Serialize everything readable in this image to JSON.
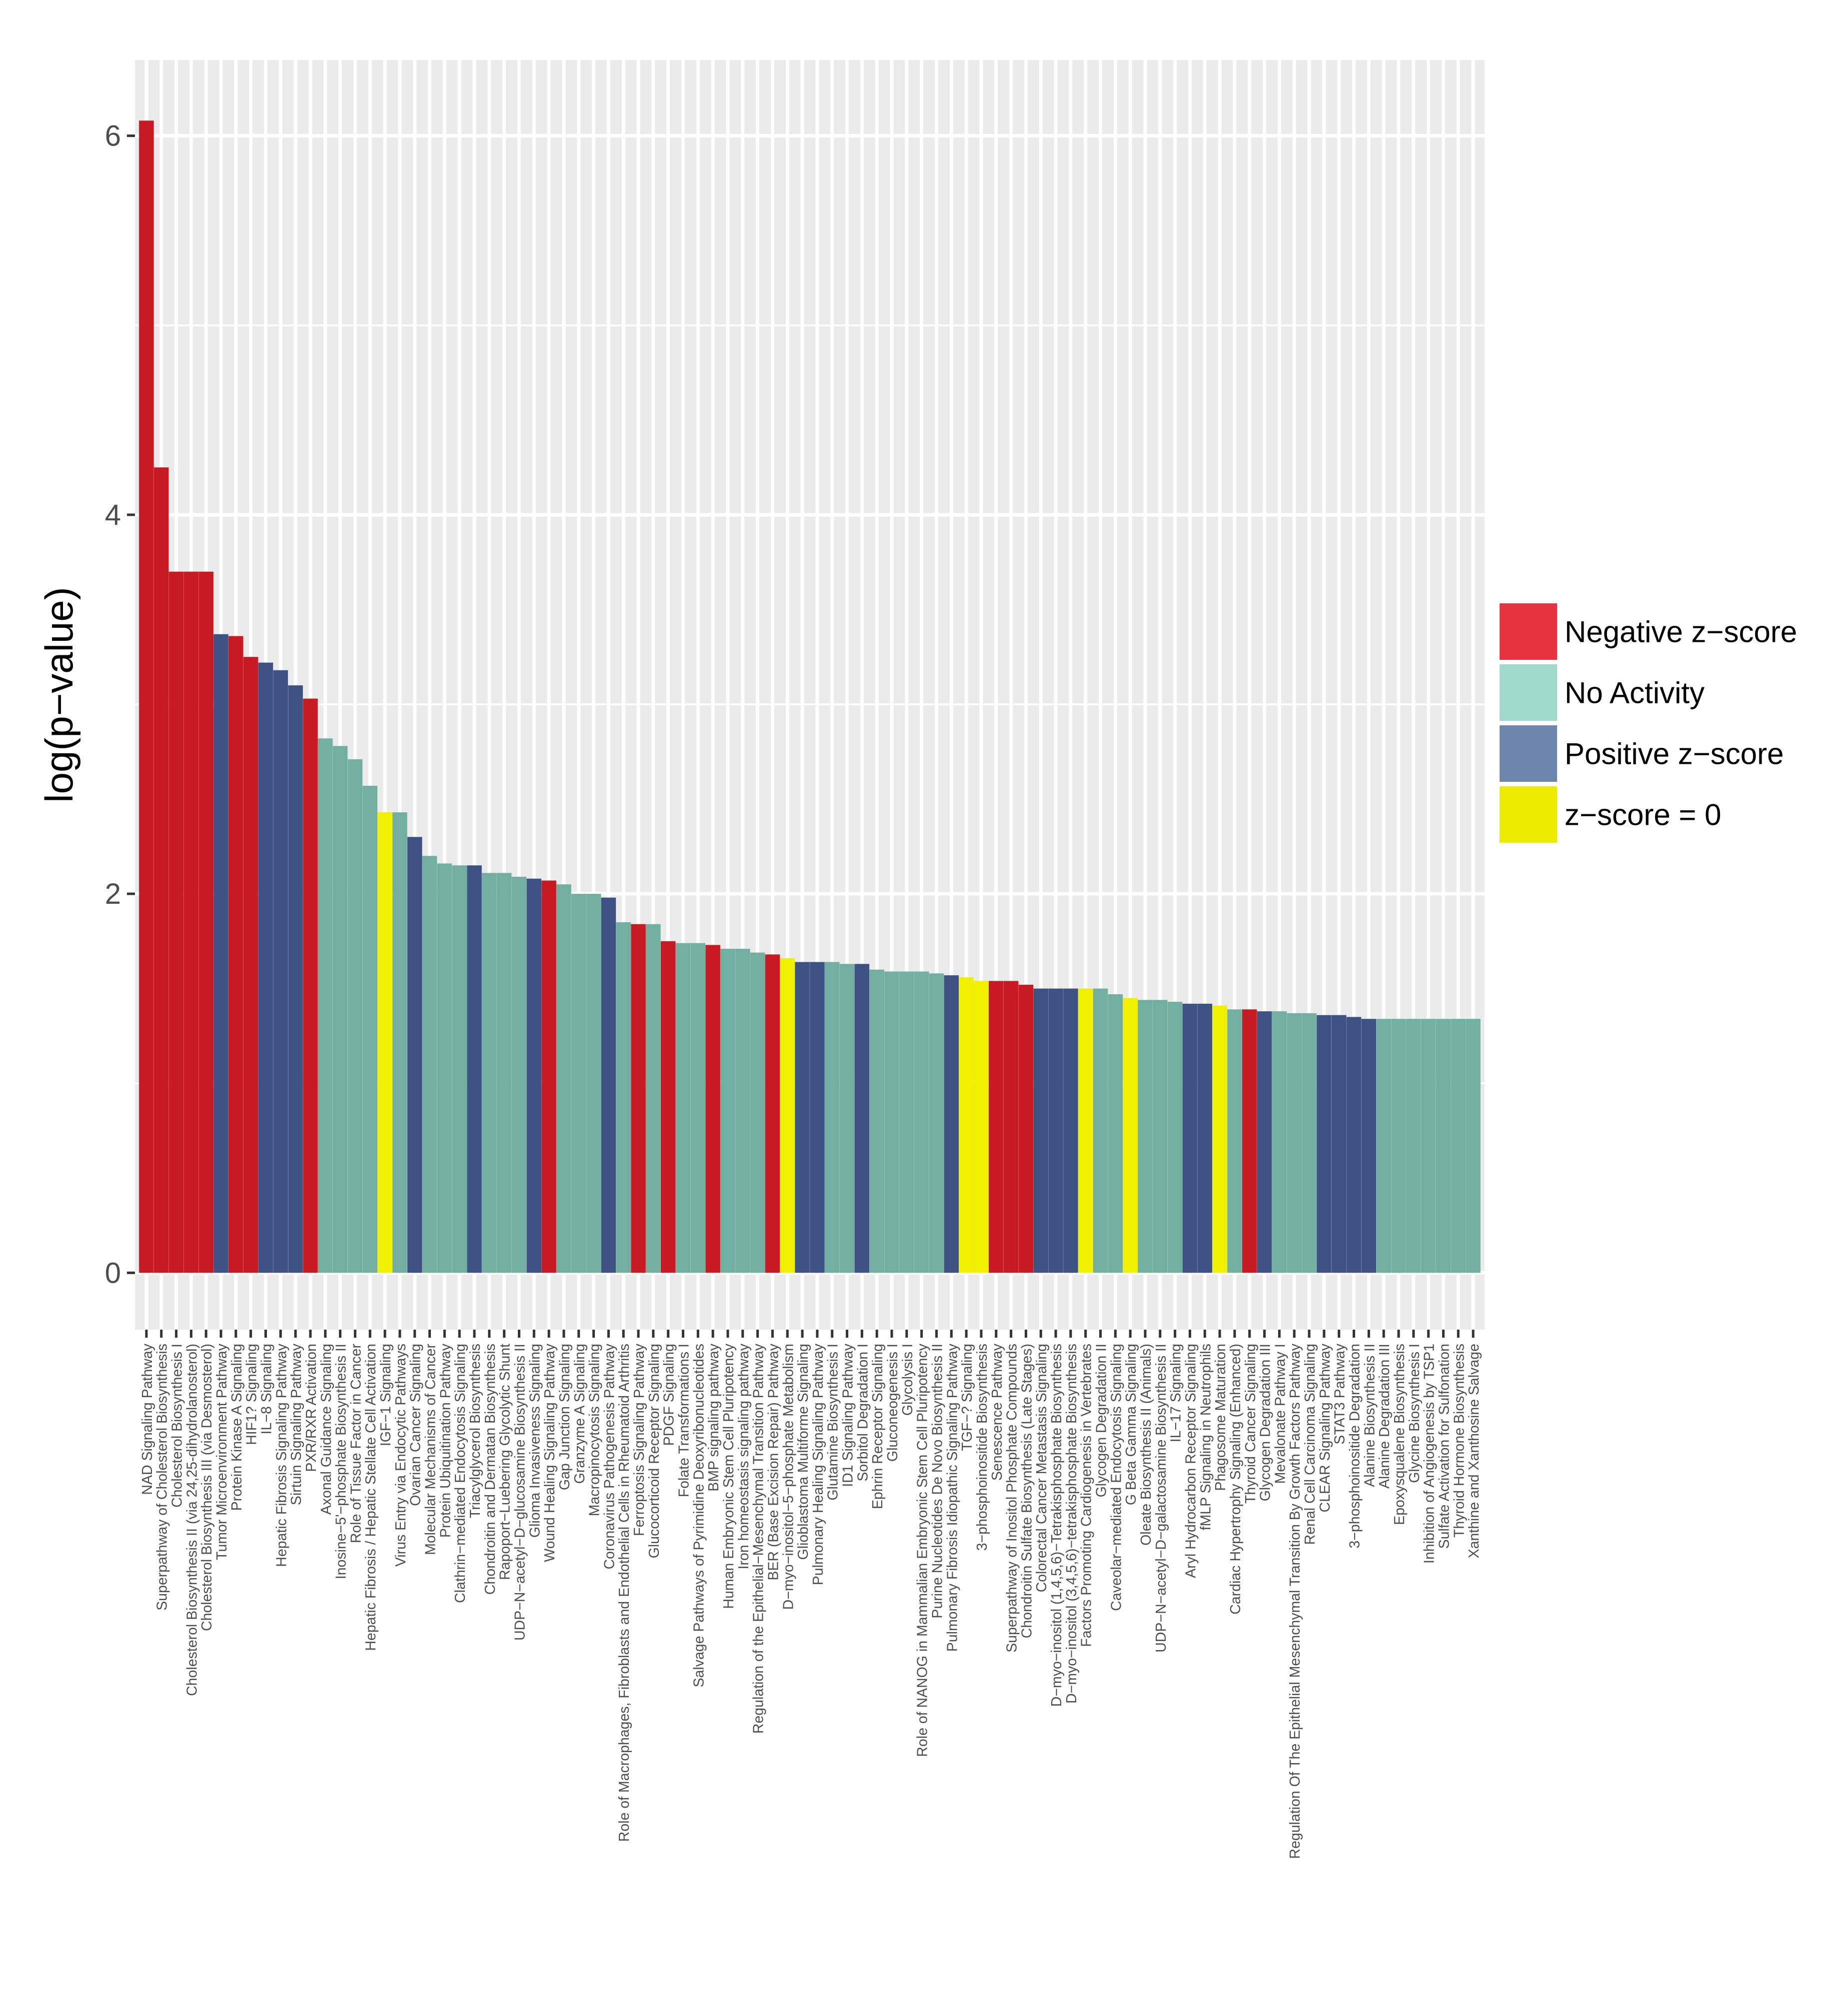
{
  "chart_data": {
    "type": "bar",
    "title": "",
    "xlabel": "",
    "ylabel": "log(p−value)",
    "ylim": [
      -0.3,
      6.4
    ],
    "yticks": [
      0,
      2,
      4,
      6
    ],
    "grid": true,
    "legend": {
      "placement": "right",
      "entries": [
        {
          "key": "neg",
          "label": "Negative z−score",
          "color": "#e8333f"
        },
        {
          "key": "na",
          "label": "No Activity",
          "color": "#9fd9cc"
        },
        {
          "key": "pos",
          "label": "Positive z−score",
          "color": "#6e85ad"
        },
        {
          "key": "zero",
          "label": "z−score = 0",
          "color": "#ecec00"
        }
      ]
    },
    "bar_colors": {
      "neg": "#c81a22",
      "na": "#72afa0",
      "pos": "#3d5283",
      "zero": "#f0f000"
    },
    "categories": [
      "NAD Signaling Pathway",
      "Superpathway of Cholesterol Biosynthesis",
      "Cholesterol Biosynthesis I",
      "Cholesterol Biosynthesis II (via 24,25-dihydrolanosterol)",
      "Cholesterol Biosynthesis III (via Desmosterol)",
      "Tumor Microenvironment Pathway",
      "Protein Kinase A Signaling",
      "HIF1? Signaling",
      "IL−8 Signaling",
      "Hepatic Fibrosis Signaling Pathway",
      "Sirtuin Signaling Pathway",
      "PXR/RXR Activation",
      "Axonal Guidance Signaling",
      "Inosine−5'−phosphate Biosynthesis II",
      "Role of Tissue Factor in Cancer",
      "Hepatic Fibrosis / Hepatic Stellate Cell Activation",
      "IGF−1 Signaling",
      "Virus Entry via Endocytic Pathways",
      "Ovarian Cancer Signaling",
      "Molecular Mechanisms of Cancer",
      "Protein Ubiquitination Pathway",
      "Clathrin−mediated Endocytosis Signaling",
      "Triacylglycerol Biosynthesis",
      "Chondroitin and Dermatan Biosynthesis",
      "Rapoport−Luebering Glycolytic Shunt",
      "UDP−N−acetyl−D−glucosamine Biosynthesis II",
      "Glioma Invasiveness Signaling",
      "Wound Healing Signaling Pathway",
      "Gap Junction Signaling",
      "Granzyme A Signaling",
      "Macropinocytosis Signaling",
      "Coronavirus Pathogenesis Pathway",
      "Role of Macrophages, Fibroblasts and Endothelial Cells in Rheumatoid Arthritis",
      "Ferroptosis Signaling Pathway",
      "Glucocorticoid Receptor Signaling",
      "PDGF Signaling",
      "Folate Transformations I",
      "Salvage Pathways of Pyrimidine Deoxyribonucleotides",
      "BMP signaling pathway",
      "Human Embryonic Stem Cell Pluripotency",
      "Iron homeostasis signaling pathway",
      "Regulation of the Epithelial−Mesenchymal Transition Pathway",
      "BER (Base Excision Repair) Pathway",
      "D−myo−inositol−5−phosphate Metabolism",
      "Glioblastoma Multiforme Signaling",
      "Pulmonary Healing Signaling Pathway",
      "Glutamine Biosynthesis I",
      "ID1 Signaling Pathway",
      "Sorbitol Degradation I",
      "Ephrin Receptor Signaling",
      "Gluconeogenesis I",
      "Glycolysis I",
      "Role of NANOG in Mammalian Embryonic Stem Cell Pluripotency",
      "Purine Nucleotides De Novo Biosynthesis II",
      "Pulmonary Fibrosis Idiopathic Signaling Pathway",
      "TGF−? Signaling",
      "3−phosphoinositide Biosynthesis",
      "Senescence Pathway",
      "Superpathway of Inositol Phosphate Compounds",
      "Chondroitin Sulfate Biosynthesis (Late Stages)",
      "Colorectal Cancer Metastasis Signaling",
      "D−myo−inositol (1,4,5,6)−Tetrakisphosphate Biosynthesis",
      "D−myo−inositol (3,4,5,6)−tetrakisphosphate Biosynthesis",
      "Factors Promoting Cardiogenesis in Vertebrates",
      "Glycogen Degradation II",
      "Caveolar−mediated Endocytosis Signaling",
      "G Beta Gamma Signaling",
      "Oleate Biosynthesis II (Animals)",
      "UDP−N−acetyl−D−galactosamine Biosynthesis II",
      "IL−17 Signaling",
      "Aryl Hydrocarbon Receptor Signaling",
      "fMLP Signaling in Neutrophils",
      "Phagosome Maturation",
      "Cardiac Hypertrophy Signaling (Enhanced)",
      "Thyroid Cancer Signaling",
      "Glycogen Degradation III",
      "Mevalonate Pathway I",
      "Regulation Of The Epithelial Mesenchymal Transition By Growth Factors Pathway",
      "Renal Cell Carcinoma Signaling",
      "CLEAR Signaling Pathway",
      "STAT3 Pathway",
      "3−phosphoinositide Degradation",
      "Alanine Biosynthesis II",
      "Alanine Degradation III",
      "Epoxysqualene Biosynthesis",
      "Glycine Biosynthesis I",
      "Inhibition of Angiogenesis by TSP1",
      "Sulfate Activation for Sulfonation",
      "Thyroid Hormone Biosynthesis",
      "Xanthine and Xanthosine Salvage"
    ],
    "values": [
      6.08,
      4.25,
      3.7,
      3.7,
      3.7,
      3.37,
      3.36,
      3.25,
      3.22,
      3.18,
      3.1,
      3.03,
      2.82,
      2.78,
      2.71,
      2.57,
      2.43,
      2.43,
      2.3,
      2.2,
      2.16,
      2.15,
      2.15,
      2.11,
      2.11,
      2.09,
      2.08,
      2.07,
      2.05,
      2.0,
      2.0,
      1.98,
      1.85,
      1.84,
      1.84,
      1.75,
      1.74,
      1.74,
      1.73,
      1.71,
      1.71,
      1.69,
      1.68,
      1.66,
      1.64,
      1.64,
      1.64,
      1.63,
      1.63,
      1.6,
      1.59,
      1.59,
      1.59,
      1.58,
      1.57,
      1.56,
      1.54,
      1.54,
      1.54,
      1.52,
      1.5,
      1.5,
      1.5,
      1.5,
      1.5,
      1.47,
      1.45,
      1.44,
      1.44,
      1.43,
      1.42,
      1.42,
      1.41,
      1.39,
      1.39,
      1.38,
      1.38,
      1.37,
      1.37,
      1.36,
      1.36,
      1.35,
      1.34,
      1.34,
      1.34,
      1.34,
      1.34,
      1.34,
      1.34,
      1.34
    ],
    "groups": [
      "neg",
      "neg",
      "neg",
      "neg",
      "neg",
      "pos",
      "neg",
      "neg",
      "pos",
      "pos",
      "pos",
      "neg",
      "na",
      "na",
      "na",
      "na",
      "zero",
      "na",
      "pos",
      "na",
      "na",
      "na",
      "pos",
      "na",
      "na",
      "na",
      "pos",
      "neg",
      "na",
      "na",
      "na",
      "pos",
      "na",
      "neg",
      "na",
      "neg",
      "na",
      "na",
      "neg",
      "na",
      "na",
      "na",
      "neg",
      "zero",
      "pos",
      "pos",
      "na",
      "na",
      "pos",
      "na",
      "na",
      "na",
      "na",
      "na",
      "pos",
      "zero",
      "zero",
      "neg",
      "neg",
      "neg",
      "pos",
      "pos",
      "pos",
      "zero",
      "na",
      "na",
      "zero",
      "na",
      "na",
      "na",
      "pos",
      "pos",
      "zero",
      "na",
      "neg",
      "pos",
      "na",
      "na",
      "na",
      "pos",
      "pos",
      "pos",
      "pos",
      "na",
      "na",
      "na",
      "na",
      "na",
      "na",
      "na"
    ]
  }
}
